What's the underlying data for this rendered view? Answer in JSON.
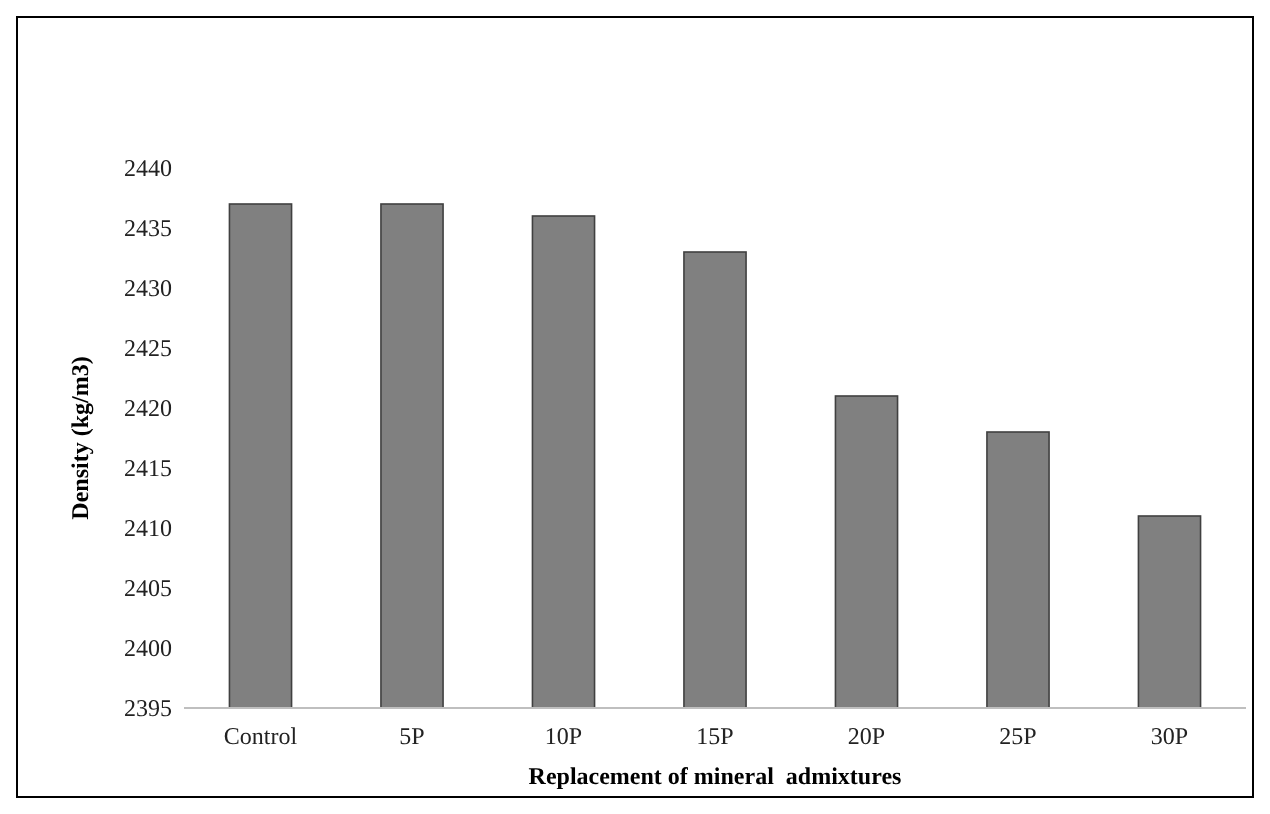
{
  "chart_data": {
    "type": "bar",
    "xlabel": "Replacement of mineral  admixtures",
    "ylabel": "Density (kg/m3)",
    "categories": [
      "Control",
      "5P",
      "10P",
      "15P",
      "20P",
      "25P",
      "30P"
    ],
    "series": [
      {
        "color": "#808080",
        "values": [
          2437,
          2437,
          2436,
          2433,
          2421,
          2418,
          2411
        ]
      }
    ],
    "ylim": [
      2395,
      2440
    ],
    "yticks": [
      2395,
      2400,
      2405,
      2410,
      2415,
      2420,
      2425,
      2430,
      2435,
      2440
    ],
    "grid": false
  }
}
